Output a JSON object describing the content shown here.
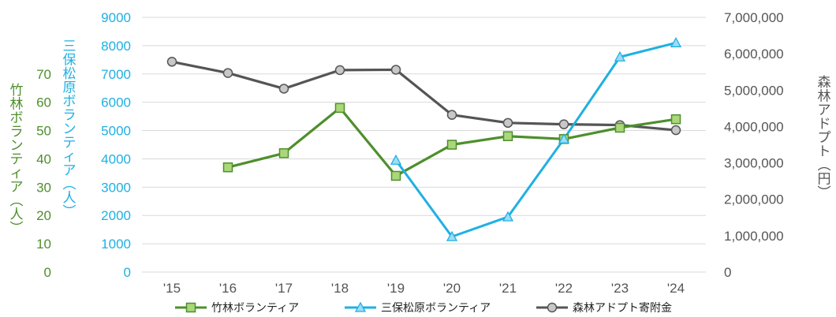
{
  "chart_data": {
    "type": "line",
    "categories": [
      "'15",
      "'16",
      "'17",
      "'18",
      "'19",
      "'20",
      "'21",
      "'22",
      "'23",
      "'24"
    ],
    "series": [
      {
        "name": "竹林ボランティア",
        "axis": "left_outer",
        "color": "#4e8f2c",
        "marker": "square",
        "values": [
          null,
          37,
          42,
          58,
          34,
          45,
          48,
          47,
          51,
          54
        ]
      },
      {
        "name": "三保松原ボランティア",
        "axis": "left_inner",
        "color": "#1fb0e3",
        "marker": "triangle",
        "values": [
          null,
          null,
          null,
          null,
          3950,
          1250,
          1950,
          4700,
          7600,
          8100
        ]
      },
      {
        "name": "森林アドプト寄附金",
        "axis": "right",
        "color": "#555555",
        "marker": "circle",
        "values": [
          null,
          null,
          null,
          null,
          null,
          4320000,
          4100000,
          4060000,
          4040000,
          3900000
        ]
      }
    ],
    "gray_line_points": [
      {
        "x": "'15",
        "y": 5780000
      },
      {
        "x": "'16",
        "y": 5470000
      },
      {
        "x": "'17",
        "y": 5040000
      },
      {
        "x": "'18",
        "y": 5550000
      },
      {
        "x": "'19",
        "y": 5560000
      },
      {
        "x": "'20",
        "y": 4320000
      },
      {
        "x": "'21",
        "y": 4100000
      },
      {
        "x": "'22",
        "y": 4060000
      },
      {
        "x": "'23",
        "y": 4040000
      },
      {
        "x": "'24",
        "y": 3900000
      }
    ],
    "axes": {
      "left_outer": {
        "label": "竹林ボランティア(人)",
        "ticks": [
          "0",
          "10",
          "20",
          "30",
          "40",
          "50",
          "60",
          "70"
        ],
        "ylim": [
          0,
          90
        ],
        "color": "#4e8f2c"
      },
      "left_inner": {
        "label": "三保松原ボランティア(人)",
        "ticks": [
          "0",
          "1000",
          "2000",
          "3000",
          "4000",
          "5000",
          "6000",
          "7000",
          "8000",
          "9000"
        ],
        "ylim": [
          0,
          9000
        ],
        "color": "#1fb0e3"
      },
      "right": {
        "label": "森林アドプト(円)",
        "ticks": [
          "0",
          "1,000,000",
          "2,000,000",
          "3,000,000",
          "4,000,000",
          "5,000,000",
          "6,000,000",
          "7,000,000"
        ],
        "ylim": [
          0,
          7000000
        ],
        "color": "#555555"
      }
    },
    "legend": [
      {
        "label": "竹林ボランティア",
        "color": "#4e8f2c",
        "marker": "square"
      },
      {
        "label": "三保松原ボランティア",
        "color": "#1fb0e3",
        "marker": "triangle"
      },
      {
        "label": "森林アドプト寄附金",
        "color": "#555555",
        "marker": "circle"
      }
    ],
    "legend_position": "bottom",
    "grid": true
  }
}
